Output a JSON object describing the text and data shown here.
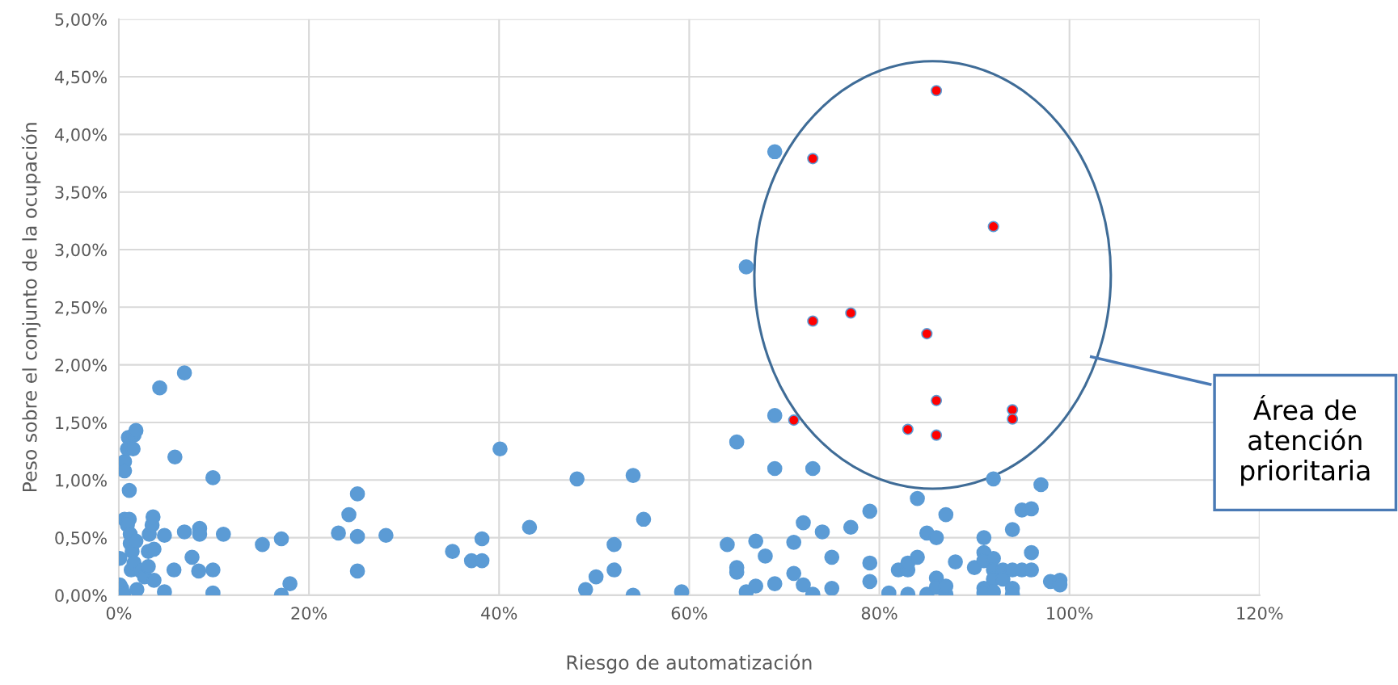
{
  "chart_data": {
    "type": "scatter",
    "xlabel": "Riesgo de automatización",
    "ylabel": "Peso sobre el conjunto de la ocupación",
    "xlim": [
      0,
      120
    ],
    "ylim": [
      0,
      5
    ],
    "xticks": [
      {
        "value": 0,
        "label": "0%"
      },
      {
        "value": 20,
        "label": "20%"
      },
      {
        "value": 40,
        "label": "40%"
      },
      {
        "value": 60,
        "label": "60%"
      },
      {
        "value": 80,
        "label": "80%"
      },
      {
        "value": 100,
        "label": "100%"
      },
      {
        "value": 120,
        "label": "120%"
      }
    ],
    "yticks": [
      {
        "value": 0,
        "label": "0,00%"
      },
      {
        "value": 0.5,
        "label": "0,50%"
      },
      {
        "value": 1,
        "label": "1,00%"
      },
      {
        "value": 1.5,
        "label": "1,50%"
      },
      {
        "value": 2,
        "label": "2,00%"
      },
      {
        "value": 2.5,
        "label": "2,50%"
      },
      {
        "value": 3,
        "label": "3,00%"
      },
      {
        "value": 3.5,
        "label": "3,50%"
      },
      {
        "value": 4,
        "label": "4,00%"
      },
      {
        "value": 4.5,
        "label": "4,50%"
      },
      {
        "value": 5,
        "label": "5,00%"
      }
    ],
    "grid": true,
    "legend": false,
    "marker": "circle",
    "annotations": [
      "Área de\natención\nprioritaria"
    ],
    "series": [
      {
        "color": "#5b9bd5",
        "x": [
          0.1,
          0.3,
          0.1,
          0.5,
          0.6,
          0.6,
          0.6,
          0.9,
          1.0,
          1.1,
          1.1,
          0.9,
          1.2,
          1.2,
          1.3,
          1.4,
          1.5,
          1.6,
          1.8,
          1.6,
          1.8,
          1.9,
          2.3,
          2.7,
          3.1,
          3.1,
          3.2,
          3.5,
          3.6,
          3.7,
          3.7,
          4.3,
          4.8,
          4.8,
          5.8,
          5.9,
          6.9,
          6.9,
          7.7,
          8.4,
          8.5,
          8.5,
          9.9,
          9.9,
          9.9,
          11.0,
          15.1,
          17.1,
          17.1,
          18.0,
          23.1,
          24.2,
          25.1,
          25.1,
          25.1,
          28.1,
          35.1,
          37.1,
          38.2,
          38.2,
          40.1,
          43.2,
          48.2,
          49.1,
          50.2,
          52.1,
          52.1,
          54.1,
          54.1,
          55.2,
          59.2,
          64,
          65,
          65,
          65,
          66,
          66,
          67,
          67,
          68,
          69,
          69,
          69,
          69,
          71,
          71,
          72,
          72,
          73,
          73,
          74,
          75,
          75,
          77,
          79,
          79,
          79,
          81,
          82,
          83,
          83,
          83,
          84,
          84,
          85,
          85,
          86,
          86,
          86,
          87,
          87,
          87,
          88,
          90,
          91,
          91,
          91,
          91,
          91,
          92,
          92,
          92,
          92,
          92,
          93,
          93,
          94,
          94,
          94,
          94,
          95,
          96,
          96,
          95,
          96,
          97,
          98,
          99,
          99
        ],
        "values": [
          0.32,
          0.06,
          0.09,
          0.01,
          0.66,
          1.16,
          1.08,
          1.27,
          1.37,
          0.91,
          0.66,
          0.61,
          0.53,
          0.45,
          0.22,
          0.38,
          1.27,
          1.39,
          1.43,
          0.28,
          0.47,
          0.05,
          0.21,
          0.16,
          0.25,
          0.38,
          0.53,
          0.61,
          0.68,
          0.13,
          0.4,
          1.8,
          0.52,
          0.03,
          0.22,
          1.2,
          0.55,
          1.93,
          0.33,
          0.21,
          0.58,
          0.53,
          1.02,
          0.22,
          0.02,
          0.53,
          0.44,
          0.49,
          0.0,
          0.1,
          0.54,
          0.7,
          0.88,
          0.51,
          0.21,
          0.52,
          0.38,
          0.3,
          0.49,
          0.3,
          1.27,
          0.59,
          1.01,
          0.05,
          0.16,
          0.44,
          0.22,
          1.04,
          0.0,
          0.66,
          0.03,
          0.44,
          1.33,
          0.24,
          0.2,
          0.03,
          2.85,
          0.47,
          0.08,
          0.34,
          3.85,
          1.56,
          1.1,
          0.1,
          0.46,
          0.19,
          0.63,
          0.09,
          1.1,
          0.01,
          0.55,
          0.33,
          0.06,
          0.59,
          0.73,
          0.28,
          0.12,
          0.02,
          0.22,
          0.01,
          0.22,
          0.28,
          0.33,
          0.84,
          0.54,
          0.01,
          0.5,
          0.15,
          0.07,
          0.7,
          0.01,
          0.08,
          0.29,
          0.24,
          0.5,
          0.37,
          0.3,
          0.06,
          0.02,
          1.01,
          0.32,
          0.22,
          0.14,
          0.03,
          0.22,
          0.14,
          0.57,
          0.22,
          0.06,
          0.01,
          0.74,
          0.75,
          0.37,
          0.22,
          0.22,
          0.96,
          0.12,
          0.13,
          0.09
        ]
      },
      {
        "color": "#ff0000",
        "x": [
          71,
          73,
          73,
          77,
          83,
          85,
          86,
          86,
          86,
          92,
          94,
          94
        ],
        "values": [
          1.52,
          3.79,
          2.38,
          2.45,
          1.44,
          2.27,
          4.38,
          1.69,
          1.39,
          3.2,
          1.61,
          1.53
        ]
      }
    ]
  }
}
